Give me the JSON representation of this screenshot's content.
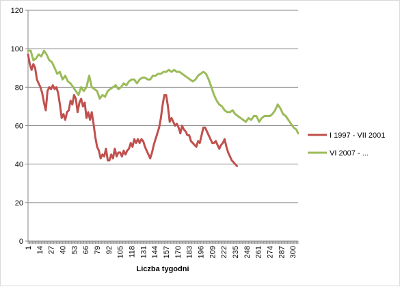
{
  "chart_data": {
    "type": "line",
    "title": "",
    "xlabel": "Liczba tygodni",
    "ylabel": "",
    "ylim": [
      0,
      120
    ],
    "yticks": [
      0,
      20,
      40,
      60,
      80,
      100,
      120
    ],
    "xticks": [
      1,
      14,
      27,
      40,
      53,
      66,
      79,
      92,
      105,
      118,
      131,
      144,
      157,
      170,
      183,
      196,
      209,
      222,
      235,
      248,
      261,
      274,
      287,
      300
    ],
    "xlim": [
      1,
      306
    ],
    "grid": "horizontal",
    "legend_position": "right",
    "series": [
      {
        "name": "I 1997 - VII 2001",
        "color": "#c0504d",
        "x": [
          1,
          3,
          5,
          7,
          9,
          11,
          13,
          15,
          17,
          19,
          21,
          23,
          25,
          27,
          29,
          31,
          33,
          35,
          37,
          39,
          41,
          43,
          45,
          47,
          49,
          51,
          53,
          55,
          57,
          59,
          61,
          63,
          65,
          67,
          69,
          71,
          73,
          75,
          77,
          79,
          81,
          83,
          85,
          87,
          89,
          91,
          93,
          95,
          97,
          99,
          101,
          103,
          105,
          107,
          109,
          111,
          113,
          115,
          117,
          119,
          121,
          123,
          125,
          127,
          129,
          131,
          133,
          135,
          137,
          139,
          141,
          143,
          145,
          147,
          149,
          151,
          153,
          155,
          157,
          159,
          161,
          163,
          165,
          167,
          169,
          171,
          173,
          175,
          177,
          179,
          181,
          183,
          185,
          187,
          189,
          191,
          193,
          195,
          197,
          199,
          201,
          203,
          205,
          207,
          209,
          211,
          213,
          215,
          217,
          219,
          221,
          223,
          225,
          227,
          229,
          231,
          233,
          235,
          237
        ],
        "y": [
          97,
          92,
          89,
          92,
          90,
          84,
          82,
          80,
          77,
          72,
          68,
          78,
          80,
          79,
          81,
          79,
          80,
          77,
          71,
          64,
          66,
          63,
          67,
          68,
          73,
          71,
          76,
          74,
          67,
          72,
          74,
          70,
          72,
          64,
          67,
          63,
          67,
          61,
          54,
          49,
          47,
          43,
          45,
          44,
          48,
          42,
          42,
          45,
          43,
          48,
          44,
          46,
          46,
          44,
          47,
          45,
          47,
          48,
          51,
          49,
          53,
          51,
          53,
          51,
          53,
          52,
          49,
          47,
          45,
          43,
          46,
          50,
          53,
          56,
          59,
          64,
          71,
          76,
          76,
          70,
          62,
          64,
          62,
          60,
          61,
          59,
          56,
          60,
          58,
          57,
          55,
          55,
          52,
          51,
          50,
          49,
          52,
          51,
          55,
          59,
          59,
          57,
          55,
          53,
          51,
          51,
          52,
          50,
          48,
          50,
          51,
          53,
          49,
          46,
          44,
          42,
          41,
          40,
          39
        ]
      },
      {
        "name": "VI 2007 - ...",
        "color": "#9bbb59",
        "x": [
          1,
          4,
          7,
          10,
          13,
          16,
          19,
          22,
          25,
          28,
          31,
          34,
          37,
          40,
          43,
          46,
          49,
          52,
          55,
          58,
          61,
          64,
          67,
          70,
          73,
          76,
          79,
          82,
          85,
          88,
          91,
          94,
          97,
          100,
          103,
          106,
          109,
          112,
          115,
          118,
          121,
          124,
          127,
          130,
          133,
          136,
          139,
          142,
          145,
          148,
          151,
          154,
          157,
          160,
          163,
          166,
          169,
          172,
          175,
          178,
          181,
          184,
          187,
          190,
          193,
          196,
          199,
          202,
          205,
          208,
          211,
          214,
          217,
          220,
          223,
          226,
          229,
          232,
          235,
          238,
          241,
          244,
          247,
          250,
          253,
          256,
          259,
          262,
          265,
          268,
          271,
          274,
          277,
          280,
          283,
          286,
          289,
          292,
          295,
          298,
          301,
          304,
          306
        ],
        "y": [
          99,
          99,
          94,
          95,
          97,
          96,
          99,
          97,
          94,
          93,
          90,
          87,
          88,
          84,
          86,
          83,
          82,
          80,
          78,
          76,
          80,
          78,
          80,
          86,
          80,
          79,
          78,
          74,
          76,
          75,
          78,
          79,
          80,
          81,
          79,
          80,
          82,
          81,
          83,
          84,
          84,
          82,
          84,
          85,
          85,
          84,
          84,
          86,
          86,
          87,
          87,
          88,
          88,
          89,
          88,
          89,
          88,
          88,
          87,
          86,
          85,
          84,
          83,
          84,
          86,
          87,
          88,
          87,
          84,
          80,
          76,
          73,
          71,
          70,
          68,
          67,
          67,
          68,
          66,
          65,
          64,
          63,
          62,
          64,
          63,
          65,
          65,
          62,
          64,
          65,
          65,
          65,
          66,
          68,
          71,
          69,
          66,
          65,
          63,
          61,
          59,
          58,
          56
        ]
      }
    ]
  }
}
